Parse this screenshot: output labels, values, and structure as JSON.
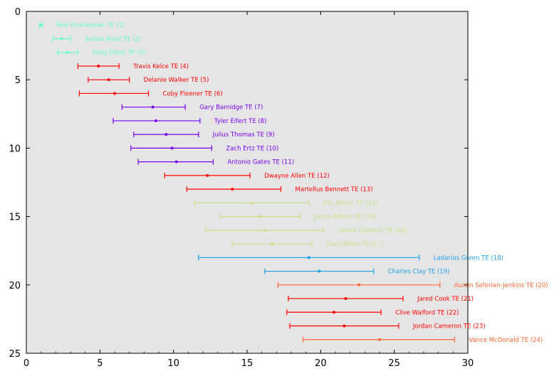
{
  "chart_data": {
    "type": "scatter",
    "subtype": "horizontal-errorbar",
    "title": "",
    "xlabel": "",
    "ylabel": "",
    "xlim": [
      0,
      30
    ],
    "ylim": [
      25,
      0
    ],
    "y_inverted": true,
    "x_ticks": [
      0,
      5,
      10,
      15,
      20,
      25,
      30
    ],
    "y_ticks": [
      0,
      5,
      10,
      15,
      20,
      25
    ],
    "x_tick_labels": [
      "0",
      "5",
      "10",
      "15",
      "20",
      "25",
      "30"
    ],
    "y_tick_labels": [
      "0",
      "5",
      "10",
      "15",
      "20",
      "25"
    ],
    "grid": false,
    "background": "#e5e5e5",
    "points": [
      {
        "rank": 1,
        "label": "Rob Gronkowski TE (1)",
        "x": 1.0,
        "low": 0.9,
        "high": 1.1,
        "color": "#66ffcc"
      },
      {
        "rank": 2,
        "label": "Jordan Reed TE (2)",
        "x": 2.4,
        "low": 1.8,
        "high": 3.0,
        "color": "#66ffcc"
      },
      {
        "rank": 3,
        "label": "Greg Olsen TE (3)",
        "x": 2.8,
        "low": 2.1,
        "high": 3.5,
        "color": "#66ffcc"
      },
      {
        "rank": 4,
        "label": "Travis Kelce TE (4)",
        "x": 4.9,
        "low": 3.5,
        "high": 6.3,
        "color": "#ff0000"
      },
      {
        "rank": 5,
        "label": "Delanie Walker TE (5)",
        "x": 5.6,
        "low": 4.2,
        "high": 7.0,
        "color": "#ff0000"
      },
      {
        "rank": 6,
        "label": "Coby Fleener TE (6)",
        "x": 6.0,
        "low": 3.6,
        "high": 8.3,
        "color": "#ff0000"
      },
      {
        "rank": 7,
        "label": "Gary Barnidge TE (7)",
        "x": 8.6,
        "low": 6.5,
        "high": 10.8,
        "color": "#7700ee"
      },
      {
        "rank": 8,
        "label": "Tyler Eifert TE (8)",
        "x": 8.8,
        "low": 5.9,
        "high": 11.8,
        "color": "#7700ee"
      },
      {
        "rank": 9,
        "label": "Julius Thomas TE (9)",
        "x": 9.5,
        "low": 7.3,
        "high": 11.7,
        "color": "#7700ee"
      },
      {
        "rank": 10,
        "label": "Zach Ertz TE (10)",
        "x": 9.9,
        "low": 7.1,
        "high": 12.6,
        "color": "#7700ee"
      },
      {
        "rank": 11,
        "label": "Antonio Gates TE (11)",
        "x": 10.2,
        "low": 7.6,
        "high": 12.7,
        "color": "#7700ee"
      },
      {
        "rank": 12,
        "label": "Dwayne Allen TE (12)",
        "x": 12.3,
        "low": 9.4,
        "high": 15.2,
        "color": "#ff0000"
      },
      {
        "rank": 13,
        "label": "Martellus Bennett TE (13)",
        "x": 14.0,
        "low": 10.9,
        "high": 17.3,
        "color": "#ff0000"
      },
      {
        "rank": 14,
        "label": "Eric Ebron TE (14)",
        "x": 15.3,
        "low": 11.4,
        "high": 19.2,
        "color": "#cce08a"
      },
      {
        "rank": 15,
        "label": "Jason Witten TE (15)",
        "x": 15.9,
        "low": 13.2,
        "high": 18.6,
        "color": "#cce08a"
      },
      {
        "rank": 16,
        "label": "Jimmy Graham TE (16)",
        "x": 16.2,
        "low": 12.2,
        "high": 20.2,
        "color": "#cce08a"
      },
      {
        "rank": 17,
        "label": "Zach Miller TE (17)",
        "x": 16.7,
        "low": 14.0,
        "high": 19.4,
        "color": "#cce08a"
      },
      {
        "rank": 18,
        "label": "Ladarius Green TE (18)",
        "x": 19.2,
        "low": 11.7,
        "high": 26.7,
        "color": "#1e9ee8"
      },
      {
        "rank": 19,
        "label": "Charles Clay TE (19)",
        "x": 19.9,
        "low": 16.2,
        "high": 23.6,
        "color": "#1e9ee8"
      },
      {
        "rank": 20,
        "label": "Austin Seferian-Jenkins TE (20)",
        "x": 22.6,
        "low": 17.1,
        "high": 28.1,
        "color": "#ff6633"
      },
      {
        "rank": 21,
        "label": "Jared Cook TE (21)",
        "x": 21.7,
        "low": 17.8,
        "high": 25.6,
        "color": "#ff0000"
      },
      {
        "rank": 22,
        "label": "Clive Walford TE (22)",
        "x": 20.9,
        "low": 17.7,
        "high": 24.1,
        "color": "#ff0000"
      },
      {
        "rank": 23,
        "label": "Jordan Cameron TE (23)",
        "x": 21.6,
        "low": 17.9,
        "high": 25.3,
        "color": "#ff0000"
      },
      {
        "rank": 24,
        "label": "Vance McDonald TE (24)",
        "x": 24.0,
        "low": 18.8,
        "high": 29.1,
        "color": "#ff6633"
      }
    ]
  }
}
